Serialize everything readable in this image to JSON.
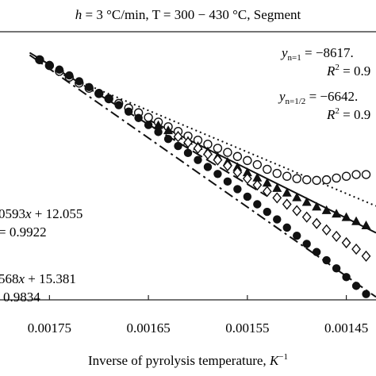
{
  "chart_data": {
    "type": "scatter",
    "title_parts": {
      "h_symbol": "h",
      "rest": " = 3 °C/min, T = 300 − 430 °C, Segment"
    },
    "xlabel_text": "Inverse of pyrolysis temperature, ",
    "xlabel_unit": "K",
    "xlabel_unit_sup": "−1",
    "x_reversed": true,
    "xlim": [
      0.0018,
      0.00142
    ],
    "ylim": [
      -4.3,
      0.3
    ],
    "xticks": [
      0.00175,
      0.00165,
      0.00155,
      0.00145
    ],
    "xtick_labels": [
      "0.00175",
      "0.00165",
      "0.00155",
      "0.00145"
    ],
    "series": [
      {
        "marker": "open-circle",
        "x": [
          0.00176,
          0.00175,
          0.00174,
          0.00173,
          0.00172,
          0.00171,
          0.0017,
          0.00169,
          0.00168,
          0.00167,
          0.00166,
          0.00165,
          0.00164,
          0.00163,
          0.00162,
          0.00161,
          0.0016,
          0.00159,
          0.00158,
          0.00157,
          0.00156,
          0.00155,
          0.00154,
          0.00153,
          0.00152,
          0.00151,
          0.0015,
          0.00149,
          0.00148,
          0.00147,
          0.00146,
          0.00145,
          0.00144,
          0.00143
        ],
        "y": [
          -0.18,
          -0.28,
          -0.38,
          -0.48,
          -0.58,
          -0.67,
          -0.76,
          -0.85,
          -0.93,
          -1.01,
          -1.09,
          -1.17,
          -1.25,
          -1.33,
          -1.41,
          -1.49,
          -1.56,
          -1.63,
          -1.7,
          -1.77,
          -1.84,
          -1.91,
          -1.98,
          -2.06,
          -2.13,
          -2.18,
          -2.22,
          -2.24,
          -2.25,
          -2.24,
          -2.21,
          -2.18,
          -2.15,
          -2.15
        ]
      },
      {
        "marker": "filled-triangle",
        "x": [
          0.00164,
          0.00163,
          0.00162,
          0.00161,
          0.0016,
          0.00159,
          0.00158,
          0.00157,
          0.00156,
          0.00155,
          0.00154,
          0.00153,
          0.00152,
          0.00151,
          0.0015,
          0.00149,
          0.00148,
          0.00147,
          0.00146,
          0.00145,
          0.00144,
          0.00143
        ],
        "y": [
          -1.3,
          -1.39,
          -1.48,
          -1.57,
          -1.66,
          -1.75,
          -1.84,
          -1.93,
          -2.02,
          -2.11,
          -2.2,
          -2.29,
          -2.38,
          -2.46,
          -2.54,
          -2.62,
          -2.7,
          -2.76,
          -2.82,
          -2.88,
          -2.95,
          -3.02
        ]
      },
      {
        "marker": "open-diamond",
        "x": [
          0.00162,
          0.00161,
          0.0016,
          0.00159,
          0.00158,
          0.00157,
          0.00156,
          0.00155,
          0.00154,
          0.00153,
          0.00152,
          0.00151,
          0.0015,
          0.00149,
          0.00148,
          0.00147,
          0.00146,
          0.00145,
          0.00144,
          0.00143
        ],
        "y": [
          -1.5,
          -1.6,
          -1.7,
          -1.8,
          -1.9,
          -2.0,
          -2.11,
          -2.22,
          -2.33,
          -2.44,
          -2.55,
          -2.66,
          -2.77,
          -2.88,
          -2.99,
          -3.1,
          -3.21,
          -3.32,
          -3.43,
          -3.55
        ]
      },
      {
        "marker": "filled-circle",
        "x": [
          0.00176,
          0.00175,
          0.00174,
          0.00173,
          0.00172,
          0.00171,
          0.0017,
          0.00169,
          0.00168,
          0.00167,
          0.00166,
          0.00165,
          0.00164,
          0.00163,
          0.00162,
          0.00161,
          0.0016,
          0.00159,
          0.00158,
          0.00157,
          0.00156,
          0.00155,
          0.00154,
          0.00153,
          0.00152,
          0.00151,
          0.0015,
          0.00149,
          0.00148,
          0.00147,
          0.00146,
          0.00145,
          0.00144,
          0.00143
        ],
        "y": [
          -0.18,
          -0.27,
          -0.35,
          -0.45,
          -0.55,
          -0.65,
          -0.75,
          -0.85,
          -0.96,
          -1.07,
          -1.18,
          -1.3,
          -1.42,
          -1.54,
          -1.66,
          -1.78,
          -1.9,
          -2.02,
          -2.14,
          -2.27,
          -2.4,
          -2.53,
          -2.66,
          -2.79,
          -2.92,
          -3.06,
          -3.2,
          -3.34,
          -3.48,
          -3.62,
          -3.76,
          -3.91,
          -4.06,
          -4.2
        ]
      }
    ],
    "fit_lines": [
      {
        "style": "dotted",
        "x": [
          0.00174,
          0.00142
        ],
        "y": [
          -0.41,
          -2.69
        ]
      },
      {
        "style": "dashed",
        "x": [
          0.00177,
          0.00153
        ],
        "y": [
          -0.06,
          -2.52
        ]
      },
      {
        "style": "dash-dot",
        "x": [
          0.00177,
          0.00142
        ],
        "y": [
          -0.1,
          -4.25
        ]
      },
      {
        "style": "solid",
        "x": [
          0.00165,
          0.00142
        ],
        "y": [
          -1.21,
          -3.15
        ]
      }
    ],
    "annotations_right": [
      {
        "y_text": "y",
        "sub": "n=1",
        "eq": " = −8617.",
        "r2_label": "R",
        "r2_sup": "2",
        "r2_eq": " = 0.9"
      },
      {
        "y_text": "y",
        "sub": "n=1/2",
        "eq": " = −6642.",
        "r2_label": "R",
        "r2_sup": "2",
        "r2_eq": " = 0.9"
      }
    ],
    "annotations_left": [
      {
        "eq_a": "0593",
        "eq_x": "x",
        "eq_b": " + 12.055",
        "r2": "= 0.9922"
      },
      {
        "eq_a": "568",
        "eq_x": "x",
        "eq_b": " + 15.381",
        "r2": "0.9834"
      }
    ]
  }
}
